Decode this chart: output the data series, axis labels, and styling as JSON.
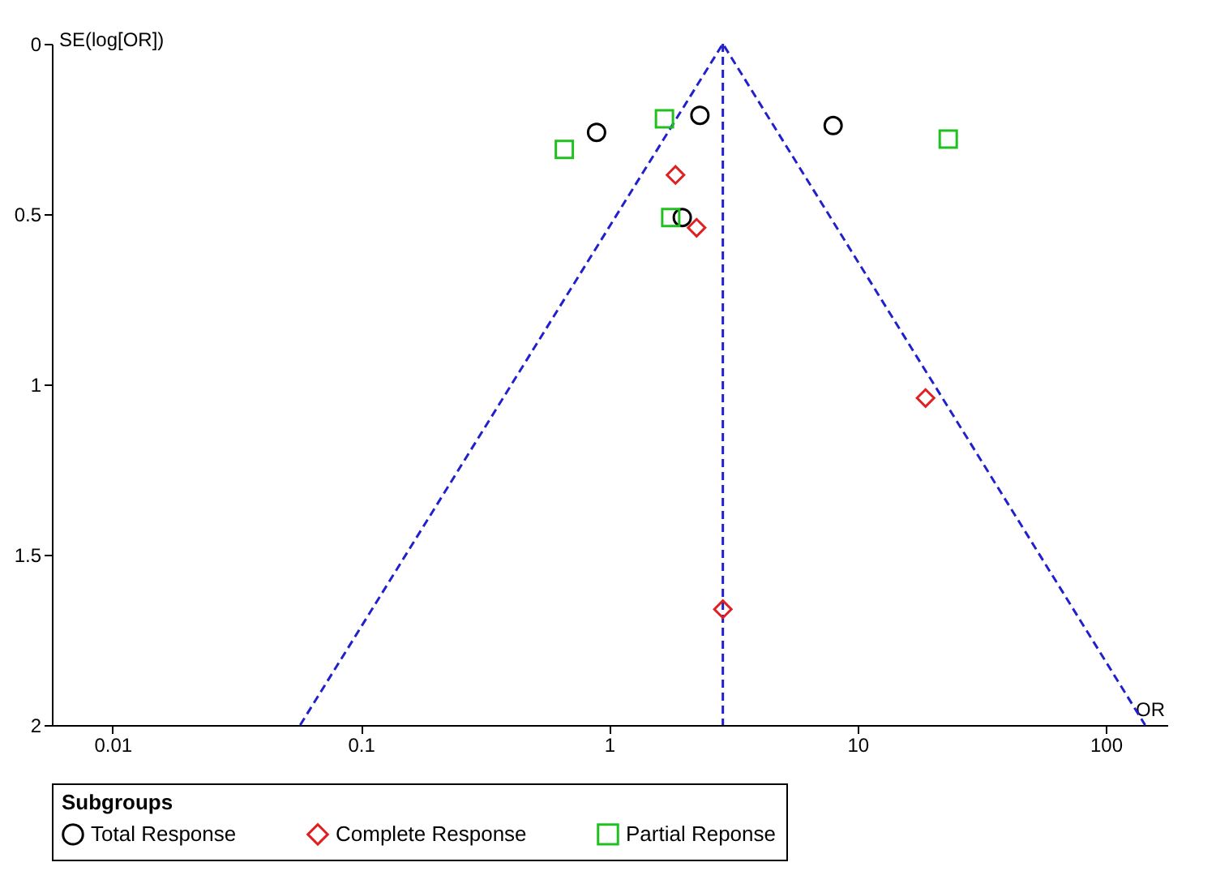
{
  "chart_data": {
    "type": "scatter",
    "xlabel": "OR",
    "ylabel": "SE(log[OR])",
    "legend_title": "Subgroups",
    "legend": "bottom",
    "log": "x",
    "xlim": [
      0.0057,
      177
    ],
    "xticks": [
      0.01,
      0.1,
      1,
      10,
      100
    ],
    "ylim": [
      2,
      0
    ],
    "yticks": [
      0,
      0.5,
      1,
      1.5,
      2
    ],
    "grid": false,
    "series": [
      {
        "name": "Total Response",
        "color": "#000000",
        "marker": "circle",
        "x": [
          0.89,
          2.32,
          7.98,
          1.97
        ],
        "values": [
          0.26,
          0.21,
          0.24,
          0.51
        ]
      },
      {
        "name": "Complete Response",
        "color": "#e02020",
        "marker": "diamond",
        "x": [
          1.85,
          2.25,
          18.8,
          2.87
        ],
        "values": [
          0.385,
          0.54,
          1.04,
          1.66
        ]
      },
      {
        "name": "Partial Reponse",
        "color": "#20c020",
        "marker": "square",
        "x": [
          0.66,
          1.67,
          1.77,
          23.2
        ],
        "values": [
          0.31,
          0.22,
          0.51,
          0.28
        ]
      },
      {
        "type": "line",
        "color": "#2020cc",
        "line_style": "dashed",
        "x": [
          0.057,
          2.87,
          144
        ],
        "values": [
          2,
          0,
          2
        ]
      }
    ],
    "ref_lines": [
      {
        "axis": "x",
        "value": 2.87,
        "color": "#2020cc",
        "line_style": "dashed"
      }
    ]
  }
}
